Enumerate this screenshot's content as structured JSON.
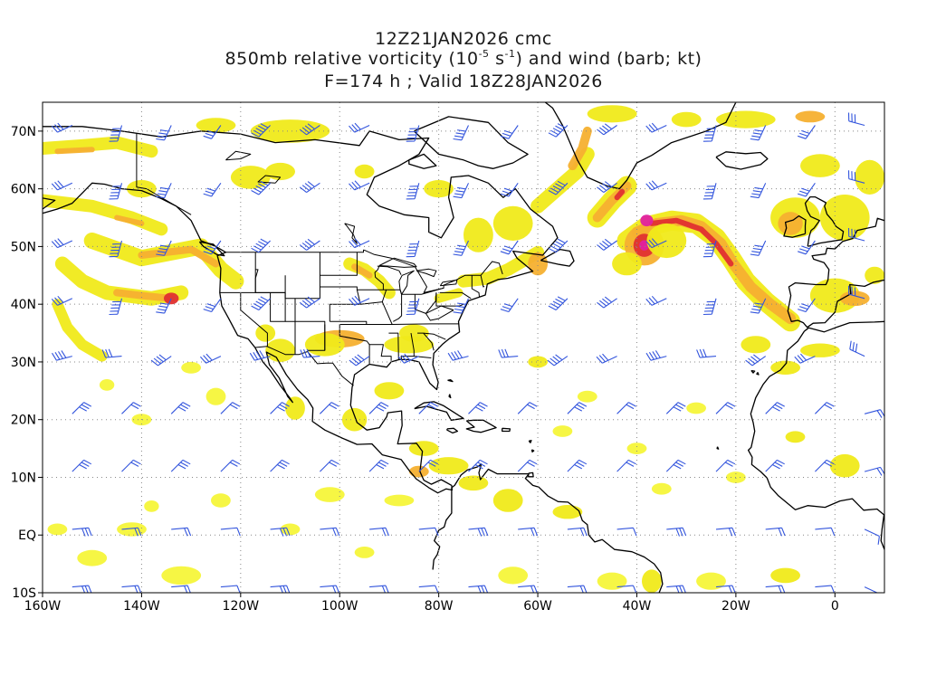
{
  "title": {
    "line1": "12Z21JAN2026 cmc",
    "line2_pre": "850mb relative vorticity (10",
    "line2_exp1": "-5",
    "line2_mid": " s",
    "line2_exp2": "-1",
    "line2_post": ") and wind (barb; kt)",
    "line3": "F=174 h ; Valid 18Z28JAN2026"
  },
  "axes": {
    "lat_labels": [
      "70N",
      "60N",
      "50N",
      "40N",
      "30N",
      "20N",
      "10N",
      "EQ",
      "10S"
    ],
    "lat_values": [
      70,
      60,
      50,
      40,
      30,
      20,
      10,
      0,
      -10
    ],
    "lon_labels": [
      "160W",
      "140W",
      "120W",
      "100W",
      "80W",
      "60W",
      "40W",
      "20W",
      "0"
    ],
    "lon_values": [
      -160,
      -140,
      -120,
      -100,
      -80,
      -60,
      -40,
      -20,
      0
    ]
  },
  "extent": {
    "lon_min": -160,
    "lon_max": 10,
    "lat_min": -10,
    "lat_max": 75
  },
  "colors": {
    "vort_light": "#f5f53a",
    "vort_yellow": "#f0ea1a",
    "vort_orange": "#f5b030",
    "vort_dark_orange": "#ef7a2a",
    "vort_red": "#e03030",
    "vort_magenta": "#e020a0",
    "barb": "#3355dd",
    "coast": "#000000",
    "grid": "#888888"
  }
}
